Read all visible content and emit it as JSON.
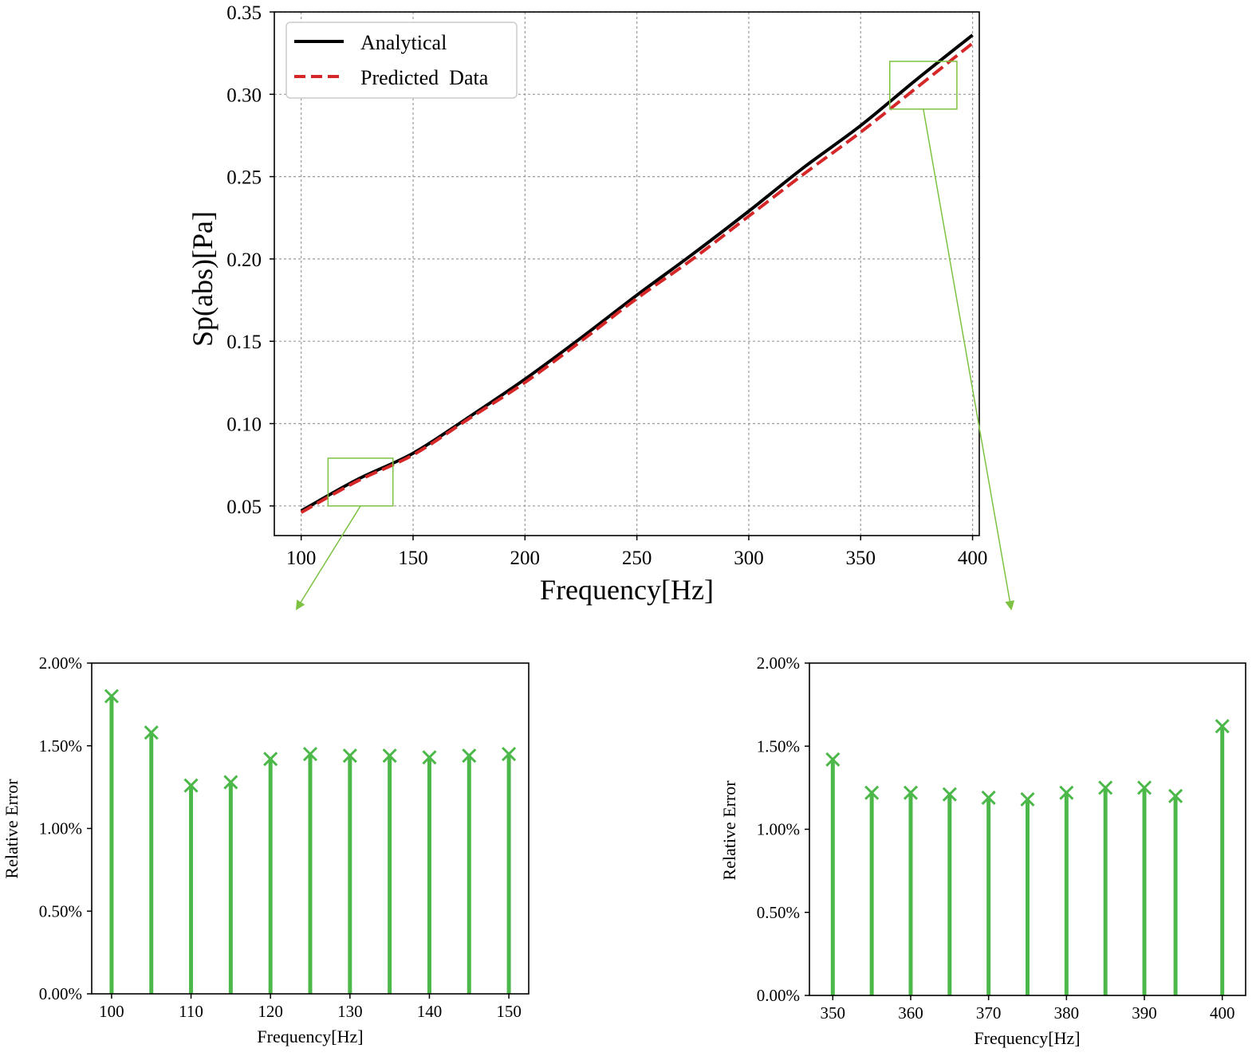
{
  "colors": {
    "analytical": "#000000",
    "predicted": "#d62728",
    "stem": "#4db84a",
    "zoom": "#7dc242"
  },
  "chart_data": [
    {
      "type": "line",
      "title": "",
      "xlabel": "Frequency[Hz]",
      "ylabel": "Sp(abs)[Pa]",
      "xlim": [
        88,
        403
      ],
      "ylim": [
        0.032,
        0.35
      ],
      "xticks": [
        100,
        150,
        200,
        250,
        300,
        350,
        400
      ],
      "yticks": [
        0.05,
        0.1,
        0.15,
        0.2,
        0.25,
        0.3,
        0.35
      ],
      "xtick_labels": [
        "100",
        "150",
        "200",
        "250",
        "300",
        "350",
        "400"
      ],
      "ytick_labels": [
        "0.05",
        "0.10",
        "0.15",
        "0.20",
        "0.25",
        "0.30",
        "0.35"
      ],
      "grid": true,
      "legend": "top-left",
      "x": [
        100,
        125,
        150,
        175,
        200,
        225,
        250,
        275,
        300,
        325,
        350,
        375,
        400
      ],
      "series": [
        {
          "name": "Analytical",
          "style": "solid",
          "values": [
            0.047,
            0.066,
            0.082,
            0.104,
            0.127,
            0.152,
            0.178,
            0.203,
            0.229,
            0.256,
            0.281,
            0.309,
            0.336
          ]
        },
        {
          "name": "Predicted  Data",
          "style": "dashed",
          "values": [
            0.046,
            0.065,
            0.081,
            0.103,
            0.125,
            0.15,
            0.176,
            0.2,
            0.226,
            0.252,
            0.277,
            0.304,
            0.331
          ]
        }
      ],
      "zoom_boxes": [
        {
          "x_range": [
            112,
            141
          ],
          "y_range": [
            0.05,
            0.079
          ]
        },
        {
          "x_range": [
            363,
            393
          ],
          "y_range": [
            0.291,
            0.32
          ]
        }
      ]
    },
    {
      "type": "stem",
      "title": "",
      "xlabel": "Frequency[Hz]",
      "ylabel": "Relative Error",
      "xlim": [
        97.5,
        152.5
      ],
      "ylim": [
        0,
        2.0
      ],
      "xticks": [
        100,
        110,
        120,
        130,
        140,
        150
      ],
      "yticks": [
        0,
        0.5,
        1.0,
        1.5,
        2.0
      ],
      "xtick_labels": [
        "100",
        "110",
        "120",
        "130",
        "140",
        "150"
      ],
      "ytick_labels": [
        "0.00%",
        "0.50%",
        "1.00%",
        "1.50%",
        "2.00%"
      ],
      "grid": false,
      "x": [
        100,
        105,
        110,
        115,
        120,
        125,
        130,
        135,
        140,
        145,
        150
      ],
      "values": [
        1.8,
        1.58,
        1.26,
        1.28,
        1.42,
        1.45,
        1.44,
        1.44,
        1.43,
        1.44,
        1.45
      ]
    },
    {
      "type": "stem",
      "title": "",
      "xlabel": "Frequency[Hz]",
      "ylabel": "Relative Error",
      "xlim": [
        347,
        403
      ],
      "ylim": [
        0,
        2.0
      ],
      "xticks": [
        350,
        360,
        370,
        380,
        390,
        400
      ],
      "yticks": [
        0,
        0.5,
        1.0,
        1.5,
        2.0
      ],
      "xtick_labels": [
        "350",
        "360",
        "370",
        "380",
        "390",
        "400"
      ],
      "ytick_labels": [
        "0.00%",
        "0.50%",
        "1.00%",
        "1.50%",
        "2.00%"
      ],
      "grid": false,
      "x": [
        350,
        355,
        360,
        365,
        370,
        375,
        380,
        385,
        390,
        394,
        400
      ],
      "values": [
        1.42,
        1.22,
        1.22,
        1.21,
        1.19,
        1.18,
        1.22,
        1.25,
        1.25,
        1.2,
        1.62
      ]
    }
  ]
}
